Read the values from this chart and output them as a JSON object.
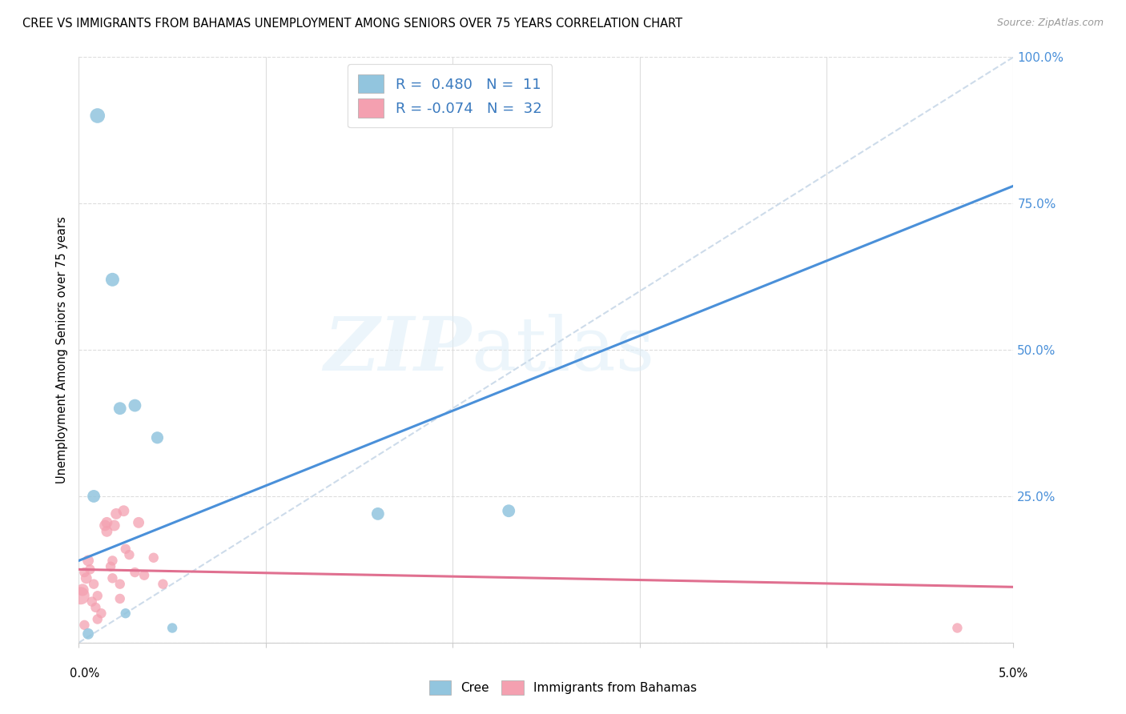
{
  "title": "CREE VS IMMIGRANTS FROM BAHAMAS UNEMPLOYMENT AMONG SENIORS OVER 75 YEARS CORRELATION CHART",
  "source": "Source: ZipAtlas.com",
  "ylabel": "Unemployment Among Seniors over 75 years",
  "ylabel_ticks": [
    "100.0%",
    "75.0%",
    "50.0%",
    "25.0%"
  ],
  "ylabel_tick_vals": [
    100,
    75,
    50,
    25
  ],
  "xlim": [
    0,
    5
  ],
  "ylim": [
    0,
    100
  ],
  "watermark_zip": "ZIP",
  "watermark_atlas": "atlas",
  "cree_color": "#92c5de",
  "bahamas_color": "#f4a0b0",
  "cree_line_color": "#4a90d9",
  "bahamas_line_color": "#e07090",
  "ref_line_color": "#c8d8e8",
  "legend_cree_label": "R =  0.480   N =  11",
  "legend_bah_label": "R = -0.074   N =  32",
  "cree_points_x": [
    0.05,
    0.1,
    0.18,
    0.22,
    0.3,
    0.42,
    0.5,
    1.6,
    2.3,
    0.08,
    0.25
  ],
  "cree_points_y": [
    1.5,
    90.0,
    62.0,
    40.0,
    40.5,
    35.0,
    2.5,
    22.0,
    22.5,
    25.0,
    5.0
  ],
  "cree_sizes": [
    100,
    180,
    150,
    130,
    130,
    120,
    80,
    130,
    130,
    130,
    80
  ],
  "bahamas_points_x": [
    0.01,
    0.02,
    0.03,
    0.04,
    0.05,
    0.06,
    0.07,
    0.08,
    0.09,
    0.1,
    0.1,
    0.12,
    0.14,
    0.15,
    0.15,
    0.17,
    0.18,
    0.18,
    0.19,
    0.2,
    0.22,
    0.22,
    0.24,
    0.25,
    0.27,
    0.3,
    0.32,
    0.35,
    0.4,
    0.45,
    4.7,
    0.03
  ],
  "bahamas_points_y": [
    8.0,
    9.0,
    12.0,
    11.0,
    14.0,
    12.5,
    7.0,
    10.0,
    6.0,
    4.0,
    8.0,
    5.0,
    20.0,
    20.5,
    19.0,
    13.0,
    11.0,
    14.0,
    20.0,
    22.0,
    10.0,
    7.5,
    22.5,
    16.0,
    15.0,
    12.0,
    20.5,
    11.5,
    14.5,
    10.0,
    2.5,
    3.0
  ],
  "bahamas_sizes": [
    250,
    120,
    80,
    100,
    100,
    80,
    80,
    80,
    80,
    80,
    80,
    80,
    100,
    100,
    100,
    80,
    80,
    80,
    100,
    100,
    80,
    80,
    100,
    80,
    80,
    80,
    100,
    80,
    80,
    80,
    80,
    80
  ],
  "cree_line_x0": 0.0,
  "cree_line_y0": 14.0,
  "cree_line_x1": 5.0,
  "cree_line_y1": 78.0,
  "bah_line_x0": 0.0,
  "bah_line_y0": 12.5,
  "bah_line_x1": 5.0,
  "bah_line_y1": 9.5
}
